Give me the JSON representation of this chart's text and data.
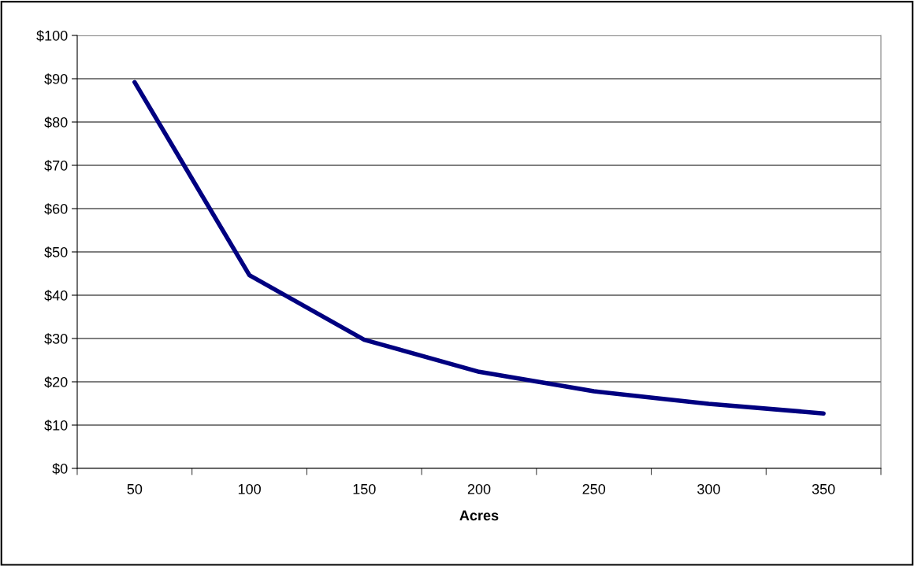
{
  "chart_data": {
    "type": "line",
    "xlabel": "Acres",
    "categories": [
      "50",
      "100",
      "150",
      "200",
      "250",
      "300",
      "350"
    ],
    "series": [
      {
        "color": "#000080",
        "values": [
          89.2,
          44.6,
          29.7,
          22.3,
          17.8,
          14.9,
          12.7
        ]
      }
    ],
    "ylim": [
      0,
      100
    ],
    "yticks": [
      {
        "value": 0,
        "label": "$0"
      },
      {
        "value": 10,
        "label": "$10"
      },
      {
        "value": 20,
        "label": "$20"
      },
      {
        "value": 30,
        "label": "$30"
      },
      {
        "value": 40,
        "label": "$40"
      },
      {
        "value": 50,
        "label": "$50"
      },
      {
        "value": 60,
        "label": "$60"
      },
      {
        "value": 70,
        "label": "$70"
      },
      {
        "value": 80,
        "label": "$80"
      },
      {
        "value": 90,
        "label": "$90"
      },
      {
        "value": 100,
        "label": "$100"
      }
    ],
    "grid": "y",
    "line_style": "solid"
  }
}
